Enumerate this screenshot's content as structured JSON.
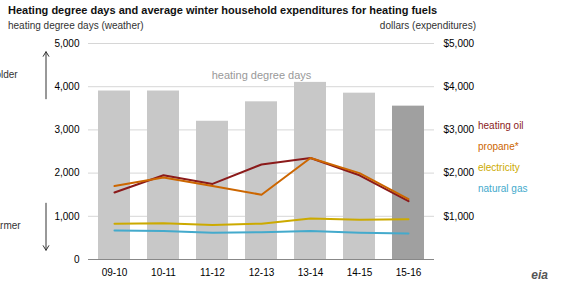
{
  "chart_data": {
    "type": "bar",
    "title": "Heating degree days and average winter household expenditures for heating fuels",
    "ylabel": "heating degree days (weather)",
    "y2label": "dollars (expenditures)",
    "categories": [
      "09-10",
      "10-11",
      "11-12",
      "12-13",
      "13-14",
      "14-15",
      "15-16"
    ],
    "series": [
      {
        "name": "heating degree days",
        "type": "bar",
        "colors": [
          "#c8c8c8",
          "#c8c8c8",
          "#c8c8c8",
          "#c8c8c8",
          "#c8c8c8",
          "#c8c8c8",
          "#a0a0a0"
        ],
        "values": [
          3900,
          3900,
          3200,
          3650,
          4100,
          3850,
          3550
        ]
      },
      {
        "name": "heating oil",
        "type": "line",
        "axis": "y2",
        "color": "#8b1a1a",
        "values": [
          1550,
          1950,
          1750,
          2200,
          2350,
          1950,
          1350
        ]
      },
      {
        "name": "propane*",
        "type": "line",
        "axis": "y2",
        "color": "#cc6600",
        "values": [
          1700,
          1900,
          1700,
          1500,
          2350,
          2000,
          1400
        ]
      },
      {
        "name": "electricity",
        "type": "line",
        "axis": "y2",
        "color": "#ccaa00",
        "values": [
          830,
          840,
          800,
          830,
          950,
          920,
          930
        ]
      },
      {
        "name": "natural gas",
        "type": "line",
        "axis": "y2",
        "color": "#44aacc",
        "values": [
          670,
          660,
          620,
          630,
          660,
          620,
          600
        ]
      }
    ],
    "ylim": [
      0,
      5000
    ],
    "yticks": [
      0,
      {
        "value": 1000,
        "label": "1,000"
      },
      {
        "value": 2000,
        "label": "2,000"
      },
      {
        "value": 3000,
        "label": "3,000"
      },
      {
        "value": 4000,
        "label": "4,000"
      },
      {
        "value": 5000,
        "label": "5,000"
      }
    ],
    "y2lim": [
      0,
      5000
    ],
    "y2ticks": [
      {
        "value": 1000,
        "label": "$1,000"
      },
      {
        "value": 2000,
        "label": "$2,000"
      },
      {
        "value": 3000,
        "label": "$3,000"
      },
      {
        "value": 4000,
        "label": "$4,000"
      },
      {
        "value": 5000,
        "label": "$5,000"
      }
    ],
    "grid": true,
    "legend": "right",
    "annotations": [
      "colder",
      "warmer",
      "eia"
    ]
  }
}
